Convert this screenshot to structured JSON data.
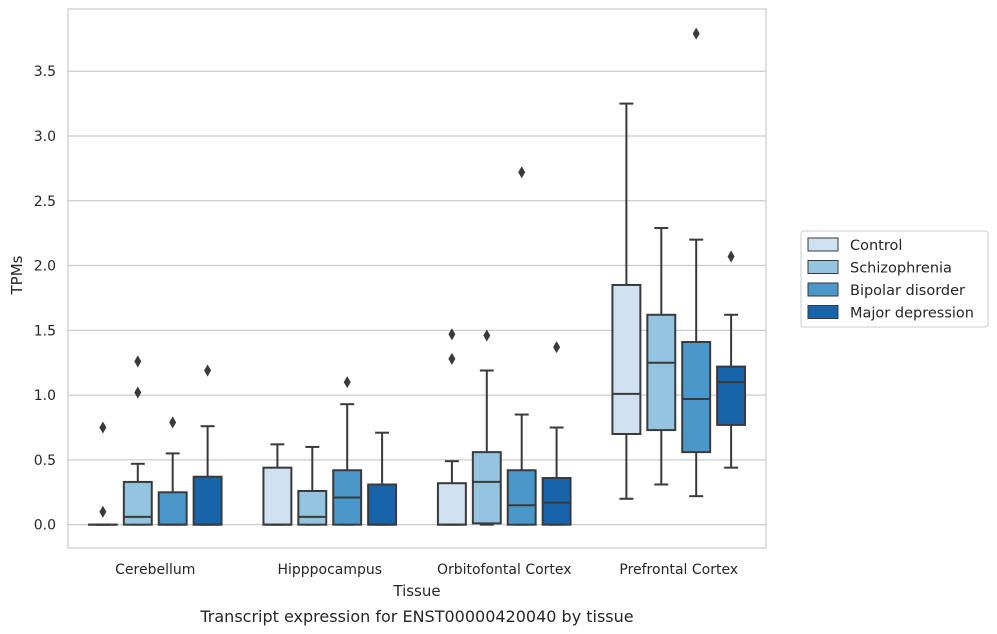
{
  "chart_data": {
    "type": "box",
    "title": "",
    "caption": "Transcript expression for ENST00000420040 by tissue",
    "xlabel": "Tissue",
    "ylabel": "TPMs",
    "ylim": [
      -0.18,
      3.98
    ],
    "yticks": [
      "0.0",
      "0.5",
      "1.0",
      "1.5",
      "2.0",
      "2.5",
      "3.0",
      "3.5"
    ],
    "grid": "horizontal",
    "legend_position": "right",
    "categories": [
      "Cerebellum",
      "Hipppocampus",
      "Orbitofontal Cortex",
      "Prefrontal Cortex"
    ],
    "series": [
      {
        "name": "Control",
        "color": "#d0e1f2",
        "boxes": [
          {
            "whislo": 0.0,
            "q1": 0.0,
            "med": 0.0,
            "q3": 0.0,
            "whishi": 0.0,
            "fliers": [
              0.1,
              0.75
            ]
          },
          {
            "whislo": 0.0,
            "q1": 0.0,
            "med": 0.0,
            "q3": 0.44,
            "whishi": 0.62,
            "fliers": []
          },
          {
            "whislo": 0.0,
            "q1": 0.0,
            "med": 0.0,
            "q3": 0.32,
            "whishi": 0.49,
            "fliers": [
              1.28,
              1.47
            ]
          },
          {
            "whislo": 0.2,
            "q1": 0.7,
            "med": 1.01,
            "q3": 1.85,
            "whishi": 3.25,
            "fliers": []
          }
        ]
      },
      {
        "name": "Schizophrenia",
        "color": "#94c4df",
        "boxes": [
          {
            "whislo": 0.0,
            "q1": 0.0,
            "med": 0.06,
            "q3": 0.33,
            "whishi": 0.47,
            "fliers": [
              1.02,
              1.26
            ]
          },
          {
            "whislo": 0.0,
            "q1": 0.0,
            "med": 0.06,
            "q3": 0.26,
            "whishi": 0.6,
            "fliers": []
          },
          {
            "whislo": 0.0,
            "q1": 0.01,
            "med": 0.33,
            "q3": 0.56,
            "whishi": 1.19,
            "fliers": [
              1.46
            ]
          },
          {
            "whislo": 0.31,
            "q1": 0.73,
            "med": 1.25,
            "q3": 1.62,
            "whishi": 2.29,
            "fliers": []
          }
        ]
      },
      {
        "name": "Bipolar disorder",
        "color": "#4a98c9",
        "boxes": [
          {
            "whislo": 0.0,
            "q1": 0.0,
            "med": 0.0,
            "q3": 0.25,
            "whishi": 0.55,
            "fliers": [
              0.79
            ]
          },
          {
            "whislo": 0.0,
            "q1": 0.0,
            "med": 0.21,
            "q3": 0.42,
            "whishi": 0.93,
            "fliers": [
              1.1
            ]
          },
          {
            "whislo": 0.0,
            "q1": 0.0,
            "med": 0.15,
            "q3": 0.42,
            "whishi": 0.85,
            "fliers": [
              2.72
            ]
          },
          {
            "whislo": 0.22,
            "q1": 0.56,
            "med": 0.97,
            "q3": 1.41,
            "whishi": 2.2,
            "fliers": [
              3.79
            ]
          }
        ]
      },
      {
        "name": "Major depression",
        "color": "#1764ab",
        "boxes": [
          {
            "whislo": 0.0,
            "q1": 0.0,
            "med": 0.0,
            "q3": 0.37,
            "whishi": 0.76,
            "fliers": [
              1.19
            ]
          },
          {
            "whislo": 0.0,
            "q1": 0.0,
            "med": 0.0,
            "q3": 0.31,
            "whishi": 0.71,
            "fliers": []
          },
          {
            "whislo": 0.0,
            "q1": 0.0,
            "med": 0.17,
            "q3": 0.36,
            "whishi": 0.75,
            "fliers": [
              1.37
            ]
          },
          {
            "whislo": 0.44,
            "q1": 0.77,
            "med": 1.1,
            "q3": 1.22,
            "whishi": 1.62,
            "fliers": [
              2.07
            ]
          }
        ]
      }
    ]
  }
}
